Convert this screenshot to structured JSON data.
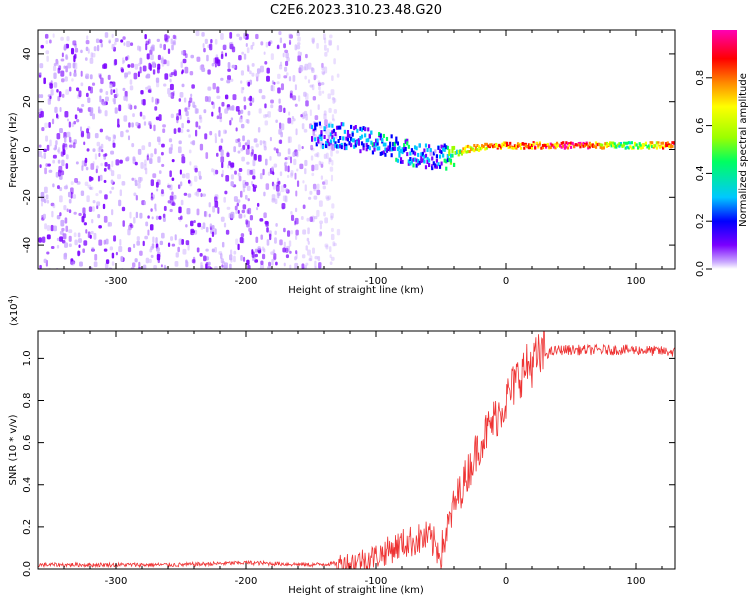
{
  "title": "C2E6.2023.310.23.48.G20",
  "colors": {
    "snr_line": "#ee3333",
    "colormap": [
      "#ffffff",
      "#c9a8ff",
      "#7a00ff",
      "#0000ff",
      "#00c8ff",
      "#00ff60",
      "#9bff00",
      "#ffff00",
      "#ff8800",
      "#ff0000",
      "#ff00b4"
    ]
  },
  "chart_data": [
    {
      "type": "heatmap",
      "xlabel": "Height of straight line (km)",
      "ylabel": "Frequency (Hz)",
      "xlim": [
        -360,
        130
      ],
      "ylim": [
        -50,
        50
      ],
      "xticks": [
        -300,
        -200,
        -100,
        0,
        100
      ],
      "yticks": [
        -40,
        -20,
        0,
        20,
        40
      ],
      "colorbar": {
        "label": "Normalized spectral amplitude",
        "range": [
          0.0,
          1.0
        ],
        "ticks": [
          0.0,
          0.2,
          0.4,
          0.6,
          0.8
        ]
      },
      "ridge": {
        "description_points_x": [
          -150,
          -130,
          -110,
          -90,
          -70,
          -55,
          -45,
          -30,
          -15,
          0,
          30,
          60,
          90,
          130
        ],
        "description_points_y": [
          6,
          6,
          4,
          1,
          -2,
          -4,
          -3,
          0,
          1,
          1.5,
          1.5,
          1.5,
          1.5,
          1.5
        ],
        "amplitude": [
          0.25,
          0.3,
          0.3,
          0.35,
          0.3,
          0.25,
          0.45,
          0.7,
          0.75,
          0.8,
          0.85,
          0.9,
          0.5,
          0.85
        ]
      },
      "noise_region_x": [
        -360,
        -130
      ],
      "noise_level": 0.05
    },
    {
      "type": "line",
      "xlabel": "Height of straight line (km)",
      "ylabel": "SNR (10 * v/v)",
      "yscale_label": "(x10",
      "yscale_exp": "4",
      "yscale_close": ")",
      "xlim": [
        -360,
        130
      ],
      "ylim": [
        0.0,
        1.13
      ],
      "xticks": [
        -300,
        -200,
        -100,
        0,
        100
      ],
      "yticks": [
        0.0,
        0.2,
        0.4,
        0.6,
        0.8,
        1.0
      ],
      "series": [
        {
          "x": [
            -360,
            -300,
            -250,
            -200,
            -150,
            -120,
            -100,
            -80,
            -60,
            -50,
            -40,
            -30,
            -20,
            -10,
            0,
            10,
            20,
            30,
            40,
            60,
            80,
            100,
            130
          ],
          "y": [
            0.02,
            0.02,
            0.02,
            0.03,
            0.02,
            0.03,
            0.06,
            0.12,
            0.15,
            0.08,
            0.3,
            0.45,
            0.6,
            0.7,
            0.8,
            0.92,
            0.98,
            1.02,
            1.04,
            1.04,
            1.04,
            1.04,
            1.03
          ]
        }
      ]
    }
  ]
}
